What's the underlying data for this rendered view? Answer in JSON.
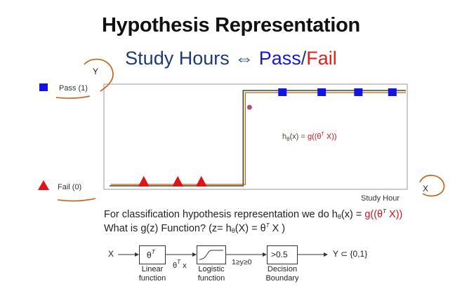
{
  "slide": {
    "title": "Hypothesis Representation",
    "subtitle": {
      "part1": "Study Hours ⇔ ",
      "pass": "Pass",
      "slash": "/",
      "fail": "Fail"
    }
  },
  "chart_data": {
    "type": "scatter",
    "title": "",
    "xlabel": "Study Hour",
    "ylabel": "",
    "y_categories": [
      "Fail (0)",
      "Pass (1)"
    ],
    "series": [
      {
        "name": "Pass (1)",
        "marker": "square",
        "color": "#1414e0",
        "x": [
          6.5,
          8.0,
          9.4,
          10.7
        ],
        "y": [
          1,
          1,
          1,
          1
        ]
      },
      {
        "name": "Fail (0)",
        "marker": "triangle",
        "color": "#e01414",
        "x": [
          1.2,
          2.5,
          3.4
        ],
        "y": [
          0,
          0,
          0
        ]
      }
    ],
    "step_threshold_x": 5.0,
    "xlim": [
      0,
      11
    ],
    "ylim": [
      0,
      1
    ],
    "formula": {
      "h": "h",
      "theta_sub": "θ",
      "mid": "(x) = ",
      "g": "g",
      "rest": "((θ",
      "T": "T",
      "end": " X))"
    },
    "handwritten": {
      "y_axis": "Y",
      "x_axis": "X"
    }
  },
  "text": {
    "line1": {
      "start": "For classification hypothesis representation we do h",
      "theta": "θ",
      "mid": "(x) = ",
      "g": "g((θ",
      "T": "T",
      "end": " X))"
    },
    "line2": {
      "start": "What is g(z) Function? (z= h",
      "theta": "θ",
      "mid": "(X) = θ",
      "T": "T",
      "end": " X )"
    }
  },
  "flow": {
    "input": "X",
    "box1": {
      "symbol": "θ",
      "sup": "T",
      "label1": "Linear",
      "label2": "function"
    },
    "edge1": {
      "main": "θ",
      "sup": "T",
      "rest": " x"
    },
    "box2": {
      "label1": "Logistic",
      "label2": "function"
    },
    "edge2": "1≥y≥0",
    "box3": {
      "symbol": ">0.5",
      "label1": "Decision",
      "label2": "Boundary"
    },
    "output": "Y ⊂ {0,1}"
  },
  "colors": {
    "pass": "#1414e0",
    "fail": "#e01414",
    "step_line": "#3a4a2a",
    "annotation": "#cc5a0c",
    "subtitle": "#1e3a7a"
  }
}
